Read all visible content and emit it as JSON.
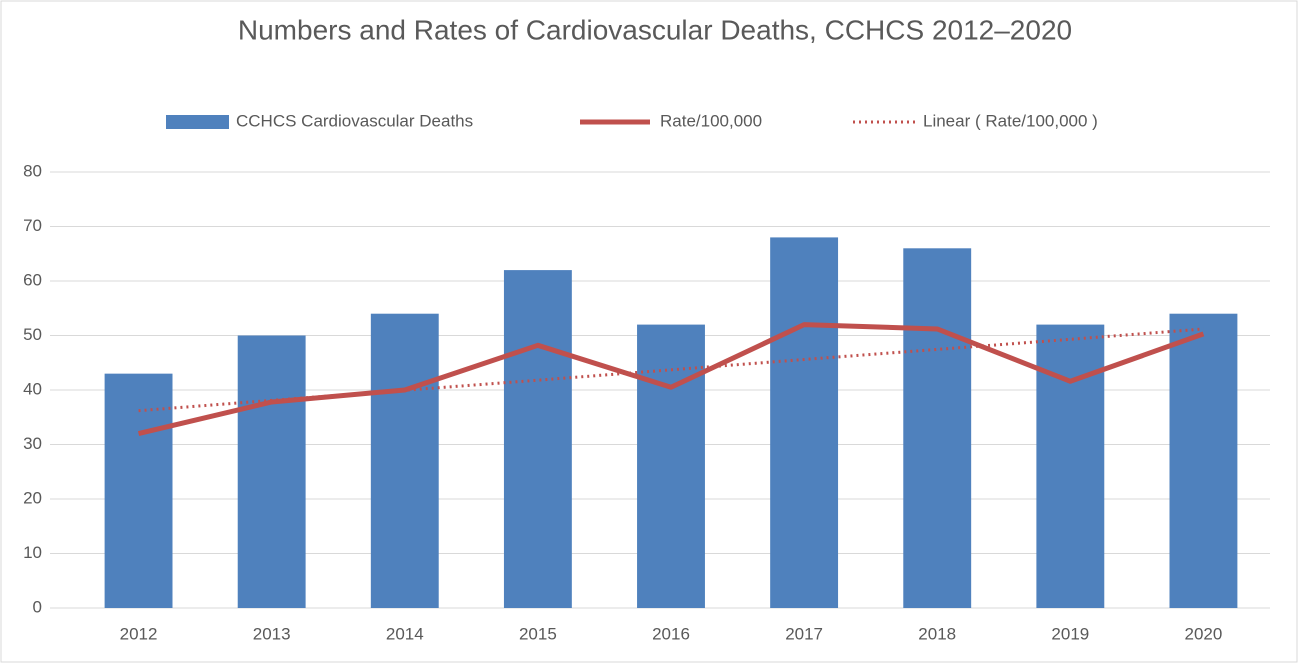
{
  "chart_data": {
    "type": "combo",
    "title": "Numbers and Rates of Cardiovascular Deaths, CCHCS 2012–2020",
    "categories": [
      "2012",
      "2013",
      "2014",
      "2015",
      "2016",
      "2017",
      "2018",
      "2019",
      "2020"
    ],
    "series": [
      {
        "name": "CCHCS Cardiovascular Deaths",
        "type": "bar",
        "color": "#4f81bd",
        "values": [
          43,
          50,
          54,
          62,
          52,
          68,
          66,
          52,
          54
        ]
      },
      {
        "name": "Rate/100,000",
        "type": "line",
        "color": "#c0504d",
        "values": [
          32,
          37.8,
          40,
          48.2,
          40.5,
          52,
          51.2,
          41.6,
          50.3
        ]
      },
      {
        "name": "Linear ( Rate/100,000 )",
        "type": "trend",
        "color": "#c0504d",
        "values": [
          36.2,
          38.1,
          39.95,
          41.8,
          43.7,
          45.6,
          47.45,
          49.3,
          51.2
        ]
      }
    ],
    "ylim": [
      0,
      80
    ],
    "yticks": [
      0,
      10,
      20,
      30,
      40,
      50,
      60,
      70,
      80
    ],
    "grid": true,
    "legend": "top"
  }
}
